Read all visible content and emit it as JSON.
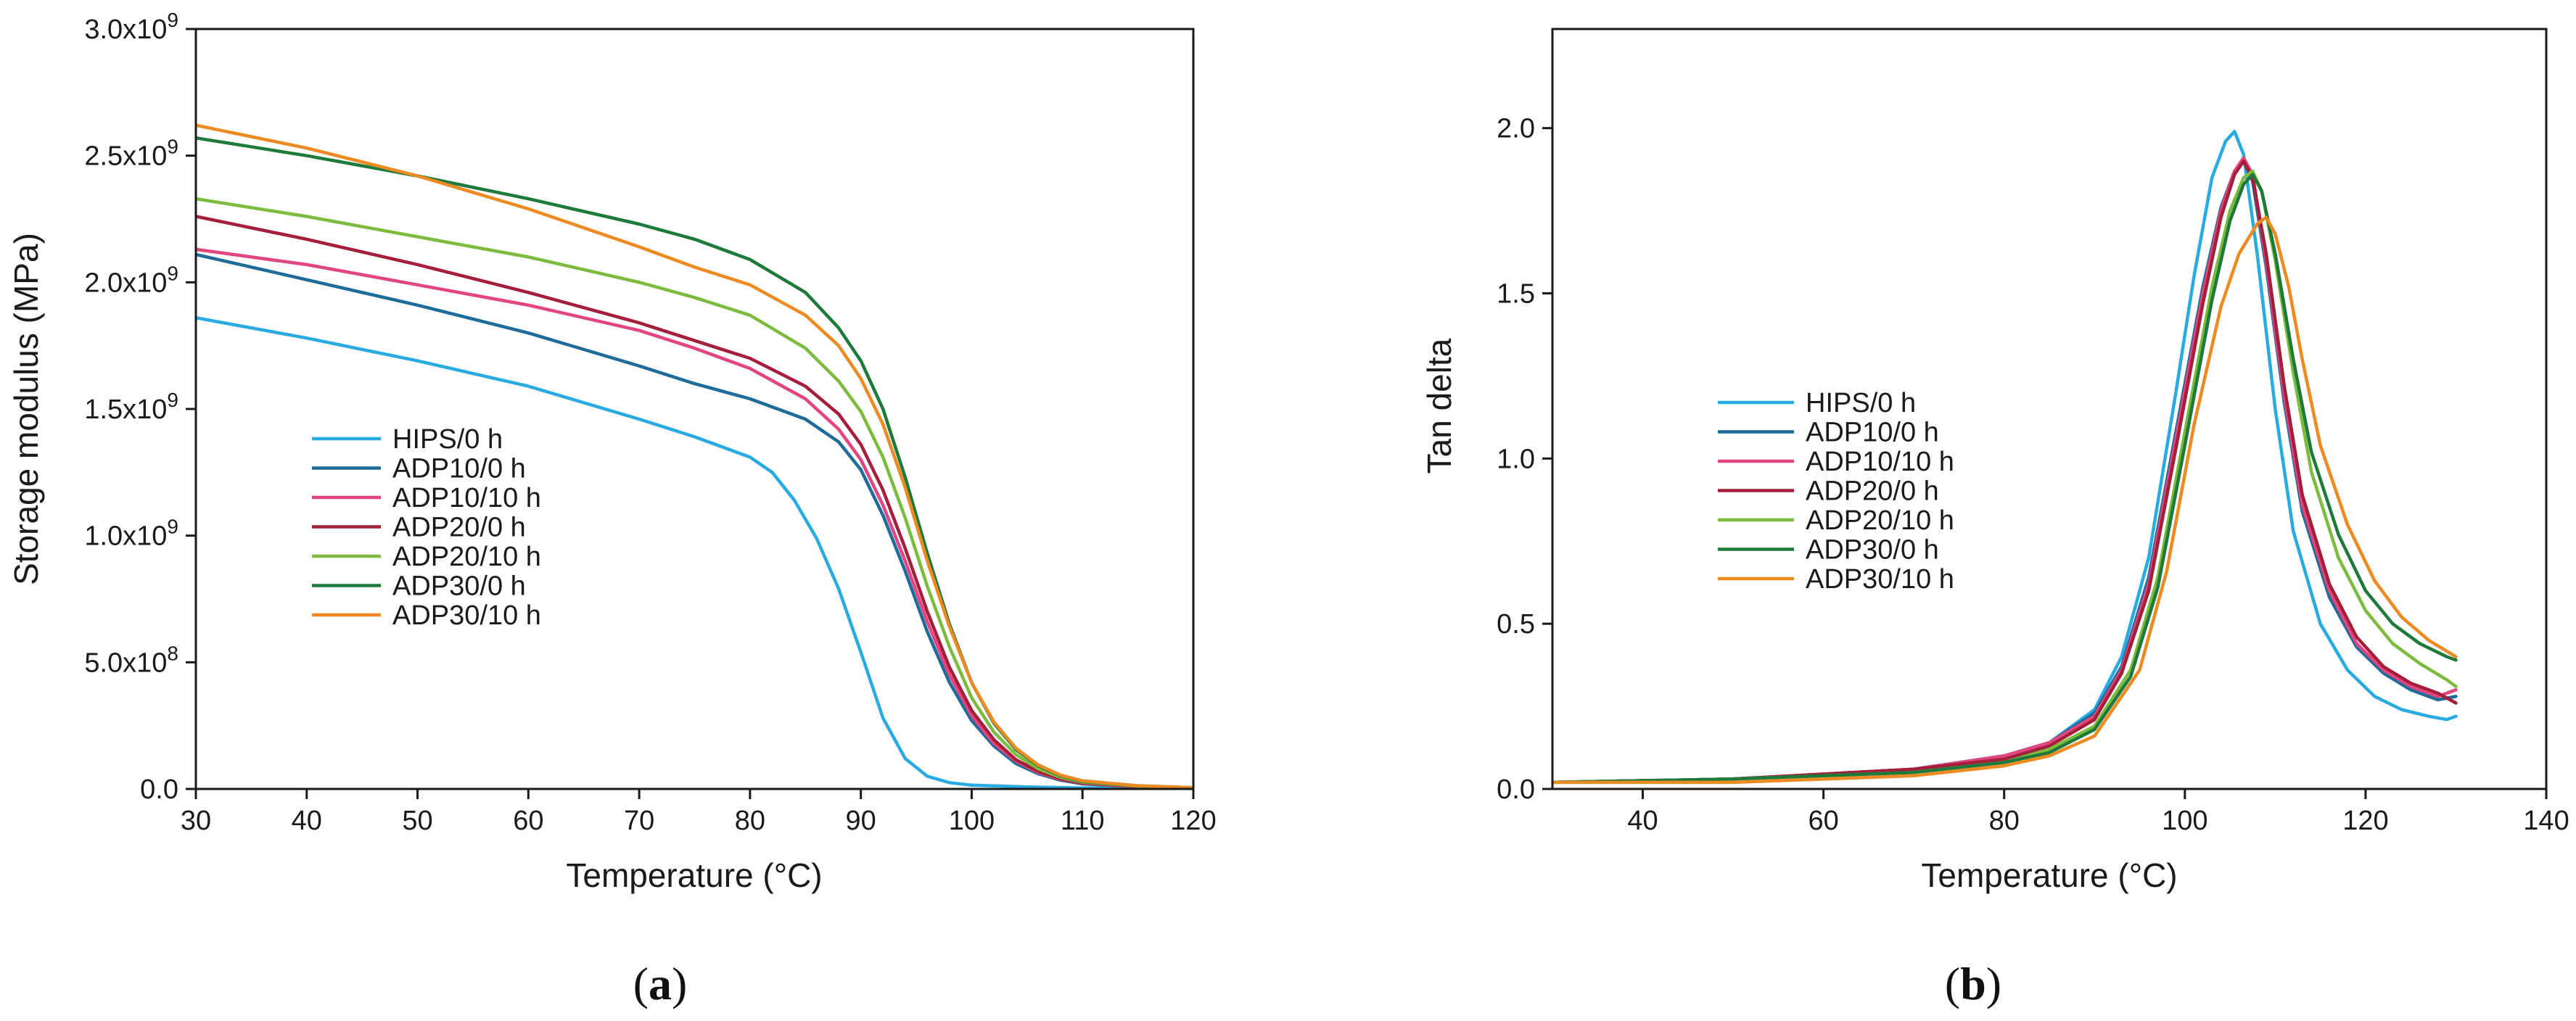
{
  "chart_data": [
    {
      "panel": "a",
      "type": "line",
      "title": "",
      "xlabel": "Temperature (°C)",
      "ylabel": "Storage modulus (MPa)",
      "xlim": [
        30,
        120
      ],
      "ylim": [
        0,
        3000000000
      ],
      "xticks": [
        30,
        40,
        50,
        60,
        70,
        80,
        90,
        100,
        110,
        120
      ],
      "xtick_labels": [
        "30",
        "40",
        "50",
        "60",
        "70",
        "80",
        "90",
        "100",
        "110",
        "120"
      ],
      "yticks": [
        0,
        500000000,
        1000000000,
        1500000000,
        2000000000,
        2500000000,
        3000000000
      ],
      "ytick_labels": [
        {
          "mantissa": "0.0",
          "exp": ""
        },
        {
          "mantissa": "5.0x10",
          "exp": "8"
        },
        {
          "mantissa": "1.0x10",
          "exp": "9"
        },
        {
          "mantissa": "1.5x10",
          "exp": "9"
        },
        {
          "mantissa": "2.0x10",
          "exp": "9"
        },
        {
          "mantissa": "2.5x10",
          "exp": "9"
        },
        {
          "mantissa": "3.0x10",
          "exp": "9"
        }
      ],
      "grid": false,
      "legend_position": "center-left",
      "series": [
        {
          "name": "HIPS/0 h",
          "color": "#29abe2",
          "x": [
            30,
            40,
            50,
            60,
            70,
            75,
            80,
            82,
            84,
            86,
            88,
            90,
            92,
            94,
            96,
            98,
            100,
            105,
            110,
            120
          ],
          "y": [
            1860000000,
            1780000000,
            1690000000,
            1590000000,
            1460000000,
            1390000000,
            1310000000,
            1250000000,
            1140000000,
            990000000,
            790000000,
            540000000,
            280000000,
            120000000,
            50000000,
            25000000,
            15000000,
            8000000,
            4000000,
            2000000
          ]
        },
        {
          "name": "ADP10/0 h",
          "color": "#1f6b9a",
          "x": [
            30,
            40,
            50,
            60,
            70,
            75,
            80,
            85,
            88,
            90,
            92,
            94,
            96,
            98,
            100,
            102,
            104,
            106,
            108,
            110,
            115,
            120
          ],
          "y": [
            2110000000,
            2010000000,
            1910000000,
            1800000000,
            1670000000,
            1600000000,
            1540000000,
            1460000000,
            1370000000,
            1260000000,
            1080000000,
            860000000,
            620000000,
            420000000,
            270000000,
            170000000,
            100000000,
            60000000,
            35000000,
            20000000,
            8000000,
            4000000
          ]
        },
        {
          "name": "ADP10/10 h",
          "color": "#e2457f",
          "x": [
            30,
            40,
            50,
            60,
            70,
            75,
            80,
            85,
            88,
            90,
            92,
            94,
            96,
            98,
            100,
            102,
            104,
            106,
            108,
            110,
            115,
            120
          ],
          "y": [
            2130000000,
            2070000000,
            1990000000,
            1910000000,
            1810000000,
            1740000000,
            1660000000,
            1540000000,
            1420000000,
            1300000000,
            1120000000,
            900000000,
            660000000,
            450000000,
            290000000,
            180000000,
            110000000,
            65000000,
            38000000,
            22000000,
            9000000,
            4000000
          ]
        },
        {
          "name": "ADP20/0 h",
          "color": "#a51e3a",
          "x": [
            30,
            40,
            50,
            60,
            70,
            75,
            80,
            85,
            88,
            90,
            92,
            94,
            96,
            98,
            100,
            102,
            104,
            106,
            108,
            110,
            115,
            120
          ],
          "y": [
            2260000000,
            2170000000,
            2070000000,
            1960000000,
            1840000000,
            1770000000,
            1700000000,
            1590000000,
            1480000000,
            1360000000,
            1180000000,
            950000000,
            700000000,
            480000000,
            310000000,
            195000000,
            115000000,
            70000000,
            40000000,
            24000000,
            10000000,
            4000000
          ]
        },
        {
          "name": "ADP20/10 h",
          "color": "#7dbb3f",
          "x": [
            30,
            40,
            50,
            60,
            70,
            75,
            80,
            85,
            88,
            90,
            92,
            94,
            96,
            98,
            100,
            102,
            104,
            106,
            108,
            110,
            115,
            120
          ],
          "y": [
            2330000000,
            2260000000,
            2180000000,
            2100000000,
            2000000000,
            1940000000,
            1870000000,
            1740000000,
            1610000000,
            1490000000,
            1310000000,
            1070000000,
            800000000,
            560000000,
            360000000,
            225000000,
            135000000,
            80000000,
            46000000,
            27000000,
            11000000,
            5000000
          ]
        },
        {
          "name": "ADP30/0 h",
          "color": "#1e7a3a",
          "x": [
            30,
            40,
            50,
            60,
            70,
            75,
            80,
            85,
            88,
            90,
            92,
            94,
            96,
            98,
            100,
            102,
            104,
            106,
            108,
            110,
            115,
            120
          ],
          "y": [
            2570000000,
            2500000000,
            2420000000,
            2330000000,
            2230000000,
            2170000000,
            2090000000,
            1960000000,
            1820000000,
            1690000000,
            1500000000,
            1230000000,
            930000000,
            650000000,
            420000000,
            260000000,
            155000000,
            92000000,
            52000000,
            30000000,
            12000000,
            5000000
          ]
        },
        {
          "name": "ADP30/10 h",
          "color": "#ed8a22",
          "x": [
            30,
            40,
            50,
            60,
            70,
            75,
            80,
            85,
            88,
            90,
            92,
            94,
            96,
            98,
            100,
            102,
            104,
            106,
            108,
            110,
            115,
            120
          ],
          "y": [
            2620000000,
            2530000000,
            2420000000,
            2290000000,
            2140000000,
            2060000000,
            1990000000,
            1870000000,
            1750000000,
            1620000000,
            1440000000,
            1190000000,
            900000000,
            640000000,
            420000000,
            265000000,
            160000000,
            95000000,
            55000000,
            32000000,
            13000000,
            5000000
          ]
        }
      ]
    },
    {
      "panel": "b",
      "type": "line",
      "title": "",
      "xlabel": "Temperature (°C)",
      "ylabel": "Tan delta",
      "xlim": [
        30,
        140
      ],
      "ylim": [
        0,
        2.3
      ],
      "xticks": [
        40,
        60,
        80,
        100,
        120,
        140
      ],
      "xtick_labels": [
        "40",
        "60",
        "80",
        "100",
        "120",
        "140"
      ],
      "yticks": [
        0,
        0.5,
        1.0,
        1.5,
        2.0
      ],
      "ytick_labels": [
        "0.0",
        "0.5",
        "1.0",
        "1.5",
        "2.0"
      ],
      "grid": false,
      "legend_position": "center-left",
      "series": [
        {
          "name": "HIPS/0 h",
          "color": "#29abe2",
          "x": [
            30,
            50,
            70,
            80,
            85,
            90,
            93,
            96,
            99,
            101,
            103,
            104.5,
            105.5,
            106.5,
            108,
            110,
            112,
            115,
            118,
            121,
            124,
            127,
            129,
            130
          ],
          "y": [
            0.02,
            0.03,
            0.06,
            0.1,
            0.14,
            0.24,
            0.4,
            0.7,
            1.2,
            1.55,
            1.85,
            1.96,
            1.99,
            1.92,
            1.62,
            1.15,
            0.78,
            0.5,
            0.36,
            0.28,
            0.24,
            0.22,
            0.21,
            0.22
          ]
        },
        {
          "name": "ADP10/0 h",
          "color": "#1f6b9a",
          "x": [
            30,
            50,
            70,
            80,
            85,
            90,
            93,
            96,
            99,
            102,
            104,
            105.5,
            106.5,
            107.5,
            109,
            111,
            113,
            116,
            119,
            122,
            125,
            128,
            130
          ],
          "y": [
            0.02,
            0.03,
            0.06,
            0.1,
            0.14,
            0.23,
            0.37,
            0.64,
            1.08,
            1.52,
            1.76,
            1.87,
            1.9,
            1.84,
            1.58,
            1.17,
            0.84,
            0.58,
            0.43,
            0.35,
            0.3,
            0.27,
            0.28
          ]
        },
        {
          "name": "ADP10/10 h",
          "color": "#e2457f",
          "x": [
            30,
            50,
            70,
            80,
            85,
            90,
            93,
            96,
            99,
            102,
            104,
            105.5,
            106.5,
            107.5,
            109,
            111,
            113,
            116,
            119,
            122,
            125,
            128,
            130
          ],
          "y": [
            0.02,
            0.03,
            0.06,
            0.1,
            0.14,
            0.22,
            0.36,
            0.62,
            1.06,
            1.5,
            1.75,
            1.87,
            1.91,
            1.86,
            1.6,
            1.19,
            0.86,
            0.6,
            0.44,
            0.36,
            0.31,
            0.28,
            0.3
          ]
        },
        {
          "name": "ADP20/0 h",
          "color": "#a51e3a",
          "x": [
            30,
            50,
            70,
            80,
            85,
            90,
            93,
            96,
            99,
            102,
            104,
            105.5,
            106.5,
            107.5,
            109,
            111,
            113,
            116,
            119,
            122,
            125,
            128,
            130
          ],
          "y": [
            0.02,
            0.03,
            0.06,
            0.09,
            0.13,
            0.21,
            0.35,
            0.6,
            1.03,
            1.47,
            1.73,
            1.86,
            1.9,
            1.85,
            1.62,
            1.22,
            0.89,
            0.62,
            0.46,
            0.37,
            0.32,
            0.29,
            0.26
          ]
        },
        {
          "name": "ADP20/10 h",
          "color": "#7dbb3f",
          "x": [
            30,
            50,
            70,
            80,
            85,
            90,
            94,
            97,
            100,
            103,
            105,
            106.5,
            107.5,
            108.5,
            110,
            112,
            114,
            117,
            120,
            123,
            126,
            129,
            130
          ],
          "y": [
            0.02,
            0.03,
            0.05,
            0.08,
            0.12,
            0.19,
            0.36,
            0.64,
            1.08,
            1.52,
            1.75,
            1.85,
            1.87,
            1.81,
            1.6,
            1.26,
            0.96,
            0.7,
            0.54,
            0.44,
            0.38,
            0.33,
            0.31
          ]
        },
        {
          "name": "ADP30/0 h",
          "color": "#1e7a3a",
          "x": [
            30,
            50,
            70,
            80,
            85,
            90,
            94,
            97,
            100,
            103,
            105,
            106.5,
            107.5,
            108.5,
            110,
            112,
            114,
            117,
            120,
            123,
            126,
            129,
            130
          ],
          "y": [
            0.02,
            0.03,
            0.05,
            0.08,
            0.11,
            0.18,
            0.34,
            0.61,
            1.04,
            1.48,
            1.72,
            1.83,
            1.86,
            1.81,
            1.62,
            1.3,
            1.02,
            0.77,
            0.6,
            0.5,
            0.44,
            0.4,
            0.39
          ]
        },
        {
          "name": "ADP30/10 h",
          "color": "#ed8a22",
          "x": [
            30,
            50,
            70,
            80,
            85,
            90,
            95,
            98,
            101,
            104,
            106,
            108,
            109,
            110,
            111.5,
            113,
            115,
            118,
            121,
            124,
            127,
            130
          ],
          "y": [
            0.02,
            0.02,
            0.04,
            0.07,
            0.1,
            0.16,
            0.36,
            0.66,
            1.1,
            1.46,
            1.62,
            1.71,
            1.73,
            1.68,
            1.52,
            1.3,
            1.04,
            0.8,
            0.63,
            0.52,
            0.45,
            0.4
          ]
        }
      ]
    }
  ],
  "panel_labels": {
    "a": "a",
    "b": "b"
  }
}
